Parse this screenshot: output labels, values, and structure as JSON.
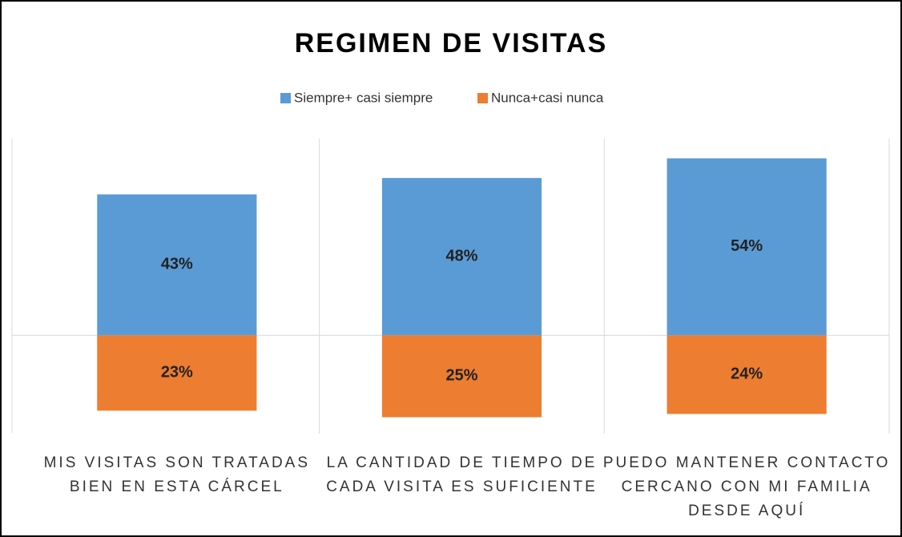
{
  "chart_data": {
    "type": "bar",
    "title": "REGIMEN DE VISITAS",
    "categories": [
      "MIS VISITAS SON TRATADAS BIEN EN ESTA CÁRCEL",
      "LA CANTIDAD DE TIEMPO DE CADA VISITA ES SUFICIENTE",
      "PUEDO MANTENER CONTACTO CERCANO CON MI FAMILIA DESDE AQUÍ"
    ],
    "series": [
      {
        "name": "Siempre+ casi siempre",
        "color": "#5b9bd5",
        "values": [
          43,
          48,
          54
        ],
        "value_labels": [
          "43%",
          "48%",
          "54%"
        ]
      },
      {
        "name": "Nunca+casi nunca",
        "color": "#ed7d31",
        "values": [
          -23,
          -25,
          -24
        ],
        "value_labels": [
          "23%",
          "25%",
          "24%"
        ]
      }
    ],
    "ylim": [
      -30,
      60
    ],
    "legend": "top"
  }
}
